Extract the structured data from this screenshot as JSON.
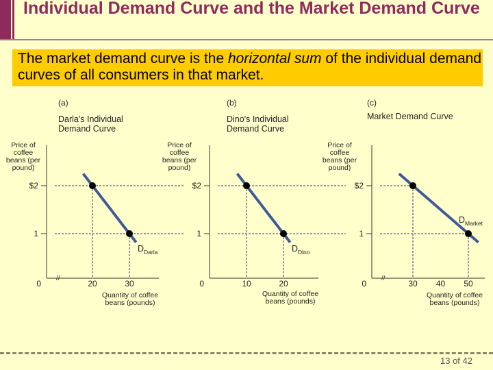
{
  "title": "Individual Demand Curve and the Market Demand Curve",
  "callout": {
    "pre": "The market demand curve is the ",
    "em": "horizontal sum",
    "post": " of the individual demand curves of all consumers in that market."
  },
  "page_number": "13 of 42",
  "colors": {
    "curve": "#3F5A99",
    "title": "#8E2B5C",
    "callout": "#FFCC00"
  },
  "chart_data": [
    {
      "type": "line",
      "panel": "(a)",
      "title": "Darla's Individual Demand Curve",
      "ylabel": "Price of coffee beans (per pound)",
      "xlabel": "Quantity of coffee beans (pounds)",
      "curve_label": "D",
      "curve_sub": "Darla",
      "points": [
        {
          "x": 20,
          "y": 2
        },
        {
          "x": 30,
          "y": 1
        }
      ],
      "xticks": [
        "20",
        "30"
      ],
      "yticks": [
        "$2",
        "1"
      ],
      "origin": "0",
      "axis_break": true
    },
    {
      "type": "line",
      "panel": "(b)",
      "title": "Dino's Individual Demand Curve",
      "ylabel": "Price of coffee beans (per pound)",
      "xlabel": "Quantity of coffee beans (pounds)",
      "curve_label": "D",
      "curve_sub": "Dino",
      "points": [
        {
          "x": 10,
          "y": 2
        },
        {
          "x": 20,
          "y": 1
        }
      ],
      "xticks": [
        "10",
        "20"
      ],
      "yticks": [
        "$2",
        "1"
      ],
      "origin": "0",
      "axis_break": false
    },
    {
      "type": "line",
      "panel": "(c)",
      "title": "Market Demand Curve",
      "ylabel": "Price of coffee beans (per pound)",
      "xlabel": "Quantity of coffee beans (pounds)",
      "curve_label": "D",
      "curve_sub": "Market",
      "points": [
        {
          "x": 30,
          "y": 2
        },
        {
          "x": 50,
          "y": 1
        }
      ],
      "xticks": [
        "30",
        "40",
        "50"
      ],
      "yticks": [
        "$2",
        "1"
      ],
      "origin": "0",
      "axis_break": true
    }
  ]
}
